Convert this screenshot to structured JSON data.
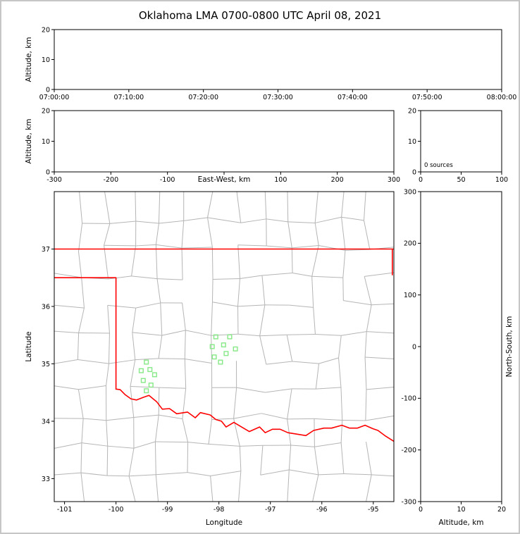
{
  "figure": {
    "title": "Oklahoma LMA 0700-0800 UTC April 08, 2021"
  },
  "colors": {
    "axis": "#000000",
    "county_lines": "#b5b5b5",
    "state_border": "#ff0000",
    "station_marker": "#86e886",
    "figure_border": "#c6c6c6",
    "background": "#ffffff"
  },
  "chart_data": [
    {
      "id": "time_altitude_panel",
      "type": "scatter",
      "xticks": [
        "07:00:00",
        "07:10:00",
        "07:20:00",
        "07:30:00",
        "07:40:00",
        "07:50:00",
        "08:00:00"
      ],
      "ylabel": "Altitude, km",
      "ylim": [
        0,
        20
      ],
      "yticks": [
        0,
        10,
        20
      ],
      "points": []
    },
    {
      "id": "eastwest_altitude_panel",
      "type": "scatter",
      "xlabel": "East-West, km",
      "ylabel": "Altitude, km",
      "xlim": [
        -300,
        300
      ],
      "xticks": [
        -300,
        -200,
        -100,
        0,
        100,
        200,
        300
      ],
      "ylim": [
        0,
        20
      ],
      "yticks": [
        0,
        10,
        20
      ],
      "points": []
    },
    {
      "id": "altitude_histogram_panel",
      "type": "line",
      "annotation": "0 sources",
      "xlim": [
        0,
        100
      ],
      "xticks": [
        0,
        50,
        100
      ],
      "ylim": [
        0,
        20
      ],
      "yticks": [
        0,
        10,
        20
      ],
      "points": []
    },
    {
      "id": "plan_view_map",
      "type": "scatter",
      "xlabel": "Longitude",
      "ylabel": "Latitude",
      "xlim": [
        -101.2,
        -94.6
      ],
      "ylim": [
        32.6,
        38.0
      ],
      "xticks": [
        -101,
        -100,
        -99,
        -98,
        -97,
        -96,
        -95
      ],
      "yticks": [
        33,
        34,
        35,
        36,
        37
      ],
      "stations_lonlat": [
        [
          -98.06,
          35.47
        ],
        [
          -97.79,
          35.47
        ],
        [
          -98.13,
          35.3
        ],
        [
          -97.91,
          35.33
        ],
        [
          -97.68,
          35.26
        ],
        [
          -98.09,
          35.12
        ],
        [
          -97.97,
          35.03
        ],
        [
          -97.86,
          35.18
        ],
        [
          -99.41,
          35.03
        ],
        [
          -99.51,
          34.88
        ],
        [
          -99.34,
          34.9
        ],
        [
          -99.25,
          34.81
        ],
        [
          -99.47,
          34.71
        ],
        [
          -99.32,
          34.63
        ],
        [
          -99.41,
          34.53
        ]
      ],
      "state_border_lonlat": [
        [
          [
            -101.2,
            37.0
          ],
          [
            -94.6,
            37.0
          ]
        ],
        [
          [
            -101.2,
            36.5
          ],
          [
            -100.0,
            36.5
          ],
          [
            -100.0,
            34.56
          ]
        ],
        [
          [
            -94.63,
            37.0
          ],
          [
            -94.63,
            36.55
          ]
        ],
        [
          [
            -100.0,
            34.56
          ],
          [
            -99.92,
            34.55
          ],
          [
            -99.82,
            34.46
          ],
          [
            -99.71,
            34.39
          ],
          [
            -99.6,
            34.37
          ],
          [
            -99.46,
            34.42
          ],
          [
            -99.36,
            34.45
          ],
          [
            -99.21,
            34.34
          ],
          [
            -99.1,
            34.21
          ],
          [
            -98.96,
            34.22
          ],
          [
            -98.82,
            34.13
          ],
          [
            -98.61,
            34.16
          ],
          [
            -98.46,
            34.06
          ],
          [
            -98.36,
            34.15
          ],
          [
            -98.17,
            34.11
          ],
          [
            -98.06,
            34.03
          ],
          [
            -97.95,
            34.0
          ],
          [
            -97.86,
            33.9
          ],
          [
            -97.71,
            33.98
          ],
          [
            -97.56,
            33.9
          ],
          [
            -97.41,
            33.82
          ],
          [
            -97.21,
            33.9
          ],
          [
            -97.1,
            33.8
          ],
          [
            -96.96,
            33.86
          ],
          [
            -96.81,
            33.86
          ],
          [
            -96.66,
            33.8
          ],
          [
            -96.51,
            33.78
          ],
          [
            -96.31,
            33.75
          ],
          [
            -96.16,
            33.84
          ],
          [
            -95.96,
            33.88
          ],
          [
            -95.81,
            33.88
          ],
          [
            -95.61,
            33.93
          ],
          [
            -95.46,
            33.88
          ],
          [
            -95.31,
            33.88
          ],
          [
            -95.16,
            33.93
          ],
          [
            -95.01,
            33.87
          ],
          [
            -94.91,
            33.84
          ],
          [
            -94.76,
            33.74
          ],
          [
            -94.6,
            33.65
          ]
        ]
      ]
    },
    {
      "id": "northsouth_altitude_panel",
      "type": "scatter",
      "xlabel": "Altitude, km",
      "ylabel": "North-South, km",
      "xlim": [
        0,
        20
      ],
      "xticks": [
        0,
        10,
        20
      ],
      "ylim": [
        -300,
        300
      ],
      "yticks": [
        -300,
        -200,
        -100,
        0,
        100,
        200,
        300
      ],
      "points": []
    }
  ]
}
